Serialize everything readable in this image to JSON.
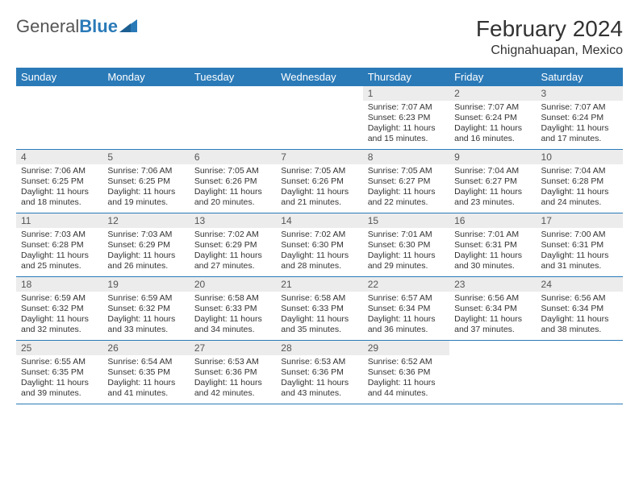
{
  "logo": {
    "text_gray": "General",
    "text_blue": "Blue"
  },
  "title": "February 2024",
  "location": "Chignahuapan, Mexico",
  "colors": {
    "header_bg": "#2a7ab8",
    "header_text": "#ffffff",
    "daynum_bg": "#ececec",
    "row_border": "#2a7ab8",
    "body_text": "#333333",
    "logo_gray": "#555555"
  },
  "typography": {
    "title_fontsize": 28,
    "location_fontsize": 16,
    "weekday_fontsize": 13,
    "cell_fontsize": 10.5,
    "daynum_fontsize": 12
  },
  "weekdays": [
    "Sunday",
    "Monday",
    "Tuesday",
    "Wednesday",
    "Thursday",
    "Friday",
    "Saturday"
  ],
  "weeks": [
    [
      {
        "n": "",
        "sr": "",
        "ss": "",
        "dl": ""
      },
      {
        "n": "",
        "sr": "",
        "ss": "",
        "dl": ""
      },
      {
        "n": "",
        "sr": "",
        "ss": "",
        "dl": ""
      },
      {
        "n": "",
        "sr": "",
        "ss": "",
        "dl": ""
      },
      {
        "n": "1",
        "sr": "Sunrise: 7:07 AM",
        "ss": "Sunset: 6:23 PM",
        "dl": "Daylight: 11 hours and 15 minutes."
      },
      {
        "n": "2",
        "sr": "Sunrise: 7:07 AM",
        "ss": "Sunset: 6:24 PM",
        "dl": "Daylight: 11 hours and 16 minutes."
      },
      {
        "n": "3",
        "sr": "Sunrise: 7:07 AM",
        "ss": "Sunset: 6:24 PM",
        "dl": "Daylight: 11 hours and 17 minutes."
      }
    ],
    [
      {
        "n": "4",
        "sr": "Sunrise: 7:06 AM",
        "ss": "Sunset: 6:25 PM",
        "dl": "Daylight: 11 hours and 18 minutes."
      },
      {
        "n": "5",
        "sr": "Sunrise: 7:06 AM",
        "ss": "Sunset: 6:25 PM",
        "dl": "Daylight: 11 hours and 19 minutes."
      },
      {
        "n": "6",
        "sr": "Sunrise: 7:05 AM",
        "ss": "Sunset: 6:26 PM",
        "dl": "Daylight: 11 hours and 20 minutes."
      },
      {
        "n": "7",
        "sr": "Sunrise: 7:05 AM",
        "ss": "Sunset: 6:26 PM",
        "dl": "Daylight: 11 hours and 21 minutes."
      },
      {
        "n": "8",
        "sr": "Sunrise: 7:05 AM",
        "ss": "Sunset: 6:27 PM",
        "dl": "Daylight: 11 hours and 22 minutes."
      },
      {
        "n": "9",
        "sr": "Sunrise: 7:04 AM",
        "ss": "Sunset: 6:27 PM",
        "dl": "Daylight: 11 hours and 23 minutes."
      },
      {
        "n": "10",
        "sr": "Sunrise: 7:04 AM",
        "ss": "Sunset: 6:28 PM",
        "dl": "Daylight: 11 hours and 24 minutes."
      }
    ],
    [
      {
        "n": "11",
        "sr": "Sunrise: 7:03 AM",
        "ss": "Sunset: 6:28 PM",
        "dl": "Daylight: 11 hours and 25 minutes."
      },
      {
        "n": "12",
        "sr": "Sunrise: 7:03 AM",
        "ss": "Sunset: 6:29 PM",
        "dl": "Daylight: 11 hours and 26 minutes."
      },
      {
        "n": "13",
        "sr": "Sunrise: 7:02 AM",
        "ss": "Sunset: 6:29 PM",
        "dl": "Daylight: 11 hours and 27 minutes."
      },
      {
        "n": "14",
        "sr": "Sunrise: 7:02 AM",
        "ss": "Sunset: 6:30 PM",
        "dl": "Daylight: 11 hours and 28 minutes."
      },
      {
        "n": "15",
        "sr": "Sunrise: 7:01 AM",
        "ss": "Sunset: 6:30 PM",
        "dl": "Daylight: 11 hours and 29 minutes."
      },
      {
        "n": "16",
        "sr": "Sunrise: 7:01 AM",
        "ss": "Sunset: 6:31 PM",
        "dl": "Daylight: 11 hours and 30 minutes."
      },
      {
        "n": "17",
        "sr": "Sunrise: 7:00 AM",
        "ss": "Sunset: 6:31 PM",
        "dl": "Daylight: 11 hours and 31 minutes."
      }
    ],
    [
      {
        "n": "18",
        "sr": "Sunrise: 6:59 AM",
        "ss": "Sunset: 6:32 PM",
        "dl": "Daylight: 11 hours and 32 minutes."
      },
      {
        "n": "19",
        "sr": "Sunrise: 6:59 AM",
        "ss": "Sunset: 6:32 PM",
        "dl": "Daylight: 11 hours and 33 minutes."
      },
      {
        "n": "20",
        "sr": "Sunrise: 6:58 AM",
        "ss": "Sunset: 6:33 PM",
        "dl": "Daylight: 11 hours and 34 minutes."
      },
      {
        "n": "21",
        "sr": "Sunrise: 6:58 AM",
        "ss": "Sunset: 6:33 PM",
        "dl": "Daylight: 11 hours and 35 minutes."
      },
      {
        "n": "22",
        "sr": "Sunrise: 6:57 AM",
        "ss": "Sunset: 6:34 PM",
        "dl": "Daylight: 11 hours and 36 minutes."
      },
      {
        "n": "23",
        "sr": "Sunrise: 6:56 AM",
        "ss": "Sunset: 6:34 PM",
        "dl": "Daylight: 11 hours and 37 minutes."
      },
      {
        "n": "24",
        "sr": "Sunrise: 6:56 AM",
        "ss": "Sunset: 6:34 PM",
        "dl": "Daylight: 11 hours and 38 minutes."
      }
    ],
    [
      {
        "n": "25",
        "sr": "Sunrise: 6:55 AM",
        "ss": "Sunset: 6:35 PM",
        "dl": "Daylight: 11 hours and 39 minutes."
      },
      {
        "n": "26",
        "sr": "Sunrise: 6:54 AM",
        "ss": "Sunset: 6:35 PM",
        "dl": "Daylight: 11 hours and 41 minutes."
      },
      {
        "n": "27",
        "sr": "Sunrise: 6:53 AM",
        "ss": "Sunset: 6:36 PM",
        "dl": "Daylight: 11 hours and 42 minutes."
      },
      {
        "n": "28",
        "sr": "Sunrise: 6:53 AM",
        "ss": "Sunset: 6:36 PM",
        "dl": "Daylight: 11 hours and 43 minutes."
      },
      {
        "n": "29",
        "sr": "Sunrise: 6:52 AM",
        "ss": "Sunset: 6:36 PM",
        "dl": "Daylight: 11 hours and 44 minutes."
      },
      {
        "n": "",
        "sr": "",
        "ss": "",
        "dl": ""
      },
      {
        "n": "",
        "sr": "",
        "ss": "",
        "dl": ""
      }
    ]
  ]
}
